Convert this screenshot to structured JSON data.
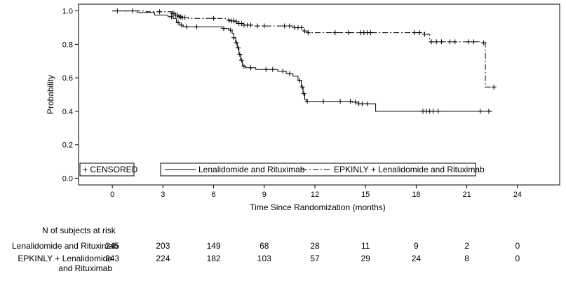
{
  "chart_data": {
    "type": "line",
    "subtype": "kaplan-meier",
    "xlabel": "Time Since Randomization (months)",
    "ylabel": "Probability",
    "xlim": [
      -2,
      26.5
    ],
    "ylim": [
      -0.04,
      1.04
    ],
    "x_ticks": [
      0,
      3,
      6,
      9,
      12,
      15,
      18,
      21,
      24
    ],
    "y_ticks": [
      0.0,
      0.2,
      0.4,
      0.6,
      0.8,
      1.0
    ],
    "y_tick_labels": [
      "0.0",
      "0.2",
      "0.4",
      "0.6",
      "0.8",
      "1.0"
    ],
    "grid": false,
    "legend_censored": "+ CENSORED",
    "series": [
      {
        "name": "Lenalidomide and Rituximab",
        "style": "solid",
        "steps": [
          [
            0,
            1.0
          ],
          [
            1.5,
            0.99
          ],
          [
            2.5,
            0.975
          ],
          [
            3.3,
            0.965
          ],
          [
            3.6,
            0.955
          ],
          [
            3.8,
            0.93
          ],
          [
            4.0,
            0.915
          ],
          [
            4.2,
            0.905
          ],
          [
            6.5,
            0.895
          ],
          [
            6.9,
            0.885
          ],
          [
            7.1,
            0.865
          ],
          [
            7.2,
            0.84
          ],
          [
            7.3,
            0.81
          ],
          [
            7.4,
            0.78
          ],
          [
            7.5,
            0.74
          ],
          [
            7.6,
            0.705
          ],
          [
            7.7,
            0.67
          ],
          [
            7.9,
            0.66
          ],
          [
            8.5,
            0.65
          ],
          [
            9.8,
            0.64
          ],
          [
            10.3,
            0.625
          ],
          [
            10.7,
            0.61
          ],
          [
            11.0,
            0.585
          ],
          [
            11.2,
            0.545
          ],
          [
            11.3,
            0.505
          ],
          [
            11.4,
            0.47
          ],
          [
            11.5,
            0.46
          ],
          [
            14.2,
            0.455
          ],
          [
            14.6,
            0.445
          ],
          [
            15.6,
            0.4
          ],
          [
            22.5,
            0.4
          ]
        ],
        "censor_times": [
          3.5,
          3.9,
          4.1,
          4.4,
          5.0,
          6.6,
          7.0,
          7.2,
          7.35,
          7.45,
          7.55,
          7.65,
          7.8,
          8.2,
          9.1,
          9.5,
          10.1,
          10.5,
          11.1,
          11.25,
          11.35,
          11.55,
          12.5,
          13.5,
          14.1,
          14.4,
          14.6,
          14.8,
          15.1,
          18.4,
          18.6,
          18.8,
          19.0,
          19.3,
          21.8,
          22.3
        ]
      },
      {
        "name": "EPKINLY + Lenalidomide and Rituximab",
        "style": "dashdot",
        "steps": [
          [
            0,
            1.0
          ],
          [
            2.0,
            0.995
          ],
          [
            3.5,
            0.985
          ],
          [
            3.7,
            0.975
          ],
          [
            3.9,
            0.965
          ],
          [
            4.1,
            0.96
          ],
          [
            4.5,
            0.955
          ],
          [
            6.7,
            0.945
          ],
          [
            7.0,
            0.94
          ],
          [
            7.3,
            0.935
          ],
          [
            7.5,
            0.925
          ],
          [
            7.8,
            0.915
          ],
          [
            8.3,
            0.91
          ],
          [
            10.8,
            0.9
          ],
          [
            11.3,
            0.88
          ],
          [
            11.6,
            0.87
          ],
          [
            18.5,
            0.86
          ],
          [
            18.8,
            0.815
          ],
          [
            21.8,
            0.81
          ],
          [
            22.1,
            0.545
          ],
          [
            22.5,
            0.545
          ]
        ],
        "censor_times": [
          0.3,
          1.2,
          2.8,
          3.55,
          3.65,
          3.75,
          3.85,
          3.95,
          4.05,
          4.15,
          4.3,
          6.0,
          6.9,
          7.05,
          7.2,
          7.35,
          7.5,
          7.65,
          7.8,
          8.0,
          8.2,
          8.6,
          9.0,
          10.2,
          10.5,
          10.8,
          11.0,
          11.2,
          11.4,
          11.6,
          13.2,
          14.0,
          14.7,
          14.9,
          15.1,
          15.3,
          17.9,
          18.2,
          18.5,
          18.9,
          19.2,
          19.5,
          20.0,
          20.3,
          21.1,
          21.4,
          22.0,
          22.6
        ]
      }
    ],
    "risk_table": {
      "title": "N of subjects at risk",
      "rows": [
        {
          "label": "Lenalidomide and Rituximab",
          "values": [
            "245",
            "203",
            "149",
            "68",
            "28",
            "11",
            "9",
            "2",
            "0"
          ]
        },
        {
          "label": "EPKINLY + Lenalidomide and Rituximab",
          "values": [
            "243",
            "224",
            "182",
            "103",
            "57",
            "29",
            "24",
            "8",
            "0"
          ]
        }
      ]
    }
  }
}
